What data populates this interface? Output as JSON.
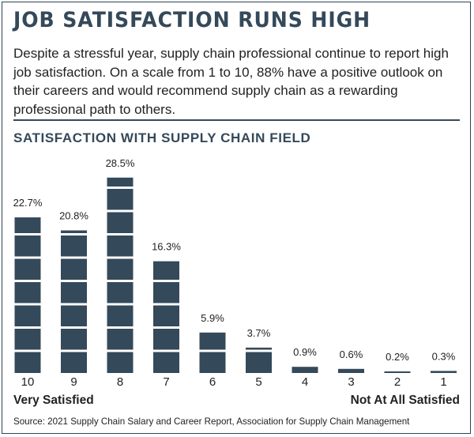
{
  "title": "Job Satisfaction Runs High",
  "description": "Despite a stressful year, supply chain professional continue to report high job satisfaction. On a scale from 1 to 10, 88% have a positive outlook on their careers and would recommend supply chain as a rewarding professional path to others.",
  "source": "Source: 2021 Supply Chain Salary and Career Report, Association for Supply Chain Management",
  "colors": {
    "bar": "#34495a",
    "rule": "#34495a",
    "title": "#34495a"
  },
  "chart_data": {
    "type": "bar",
    "title": "SATISFACTION WITH SUPPLY CHAIN FIELD",
    "categories": [
      "10",
      "9",
      "8",
      "7",
      "6",
      "5",
      "4",
      "3",
      "2",
      "1"
    ],
    "values": [
      22.7,
      20.8,
      28.5,
      16.3,
      5.9,
      3.7,
      0.9,
      0.6,
      0.2,
      0.3
    ],
    "value_labels": [
      "22.7%",
      "20.8%",
      "28.5%",
      "16.3%",
      "5.9%",
      "3.7%",
      "0.9%",
      "0.6%",
      "0.2%",
      "0.3%"
    ],
    "scale_end_labels": {
      "left": "Very Satisfied",
      "right": "Not At All Satisfied"
    },
    "ylim": [
      0,
      30
    ],
    "grid": false,
    "legend": "none"
  }
}
